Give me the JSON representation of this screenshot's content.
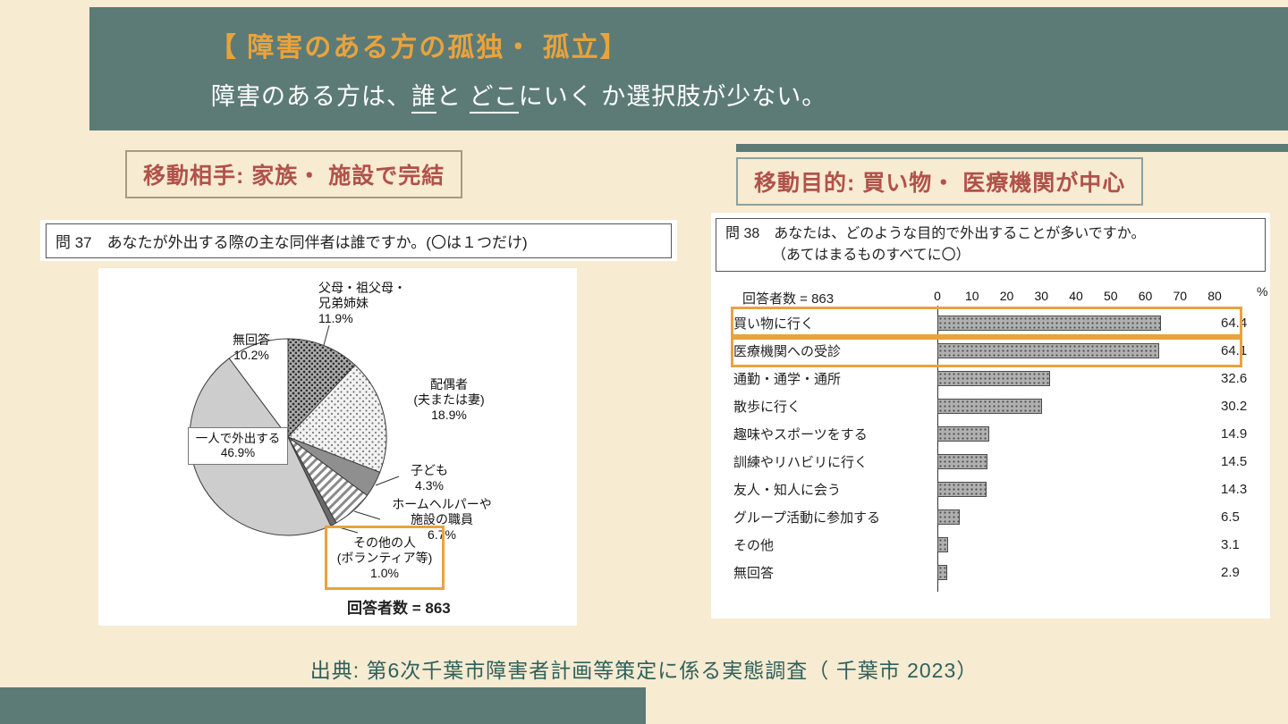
{
  "colors": {
    "background": "#f7ebd2",
    "header_teal": "#5c7b77",
    "accent_orange": "#e8a33d",
    "label_red": "#b0524a",
    "source_teal": "#2f615c"
  },
  "header": {
    "title": "【 障害のある方の孤独・ 孤立】",
    "subtitle": {
      "pre": "障害のある方は、",
      "u1": "誰",
      "mid": "と ",
      "u2": "どこ",
      "post": "にいく か選択肢が少ない。"
    }
  },
  "left_section": {
    "label": "移動相手: 家族・ 施設で完結",
    "question": "問 37　あなたが外出する際の主な同伴者は誰ですか。(〇は１つだけ)",
    "respondents": "回答者数 = 863"
  },
  "right_section": {
    "label": "移動目的: 買い物・ 医療機関が中心",
    "question_line1": "問 38　あなたは、どのような目的で外出することが多いですか。",
    "question_line2": "（あてはまるものすべてに〇）",
    "respondents": "回答者数 = 863",
    "percent_label": "%"
  },
  "source": "出典: 第6次千葉市障害者計画等策定に係る実態調査（ 千葉市 2023）",
  "chart_data": [
    {
      "type": "pie",
      "title": "問37 外出する際の主な同伴者",
      "labels": [
        "父母・祖父母・兄弟姉妹",
        "配偶者（夫または妻）",
        "子ども",
        "ホームヘルパーや施設の職員",
        "その他の人（ボランティア等）",
        "一人で外出する",
        "無回答"
      ],
      "values": [
        11.9,
        18.9,
        4.3,
        6.7,
        1.0,
        46.9,
        10.2
      ],
      "label_lines": [
        [
          "父母・祖父母・",
          "兄弟姉妹"
        ],
        [
          "配偶者",
          "(夫または妻)"
        ],
        [
          "子ども"
        ],
        [
          "ホームヘルパーや",
          "施設の職員"
        ],
        [
          "その他の人",
          "(ボランティア等)"
        ],
        [
          "一人で外出する"
        ],
        [
          "無回答"
        ]
      ],
      "highlighted": [
        4
      ],
      "respondents": 863
    },
    {
      "type": "bar",
      "title": "問38 外出の目的",
      "categories": [
        "買い物に行く",
        "医療機関への受診",
        "通勤・通学・通所",
        "散歩に行く",
        "趣味やスポーツをする",
        "訓練やリハビリに行く",
        "友人・知人に会う",
        "グループ活動に参加する",
        "その他",
        "無回答"
      ],
      "values": [
        64.4,
        64.1,
        32.6,
        30.2,
        14.9,
        14.5,
        14.3,
        6.5,
        3.1,
        2.9
      ],
      "xlim": [
        0,
        80
      ],
      "ticks": [
        0,
        10,
        20,
        30,
        40,
        50,
        60,
        70,
        80
      ],
      "xlabel_unit": "%",
      "highlighted": [
        0,
        1
      ],
      "respondents": 863
    }
  ]
}
